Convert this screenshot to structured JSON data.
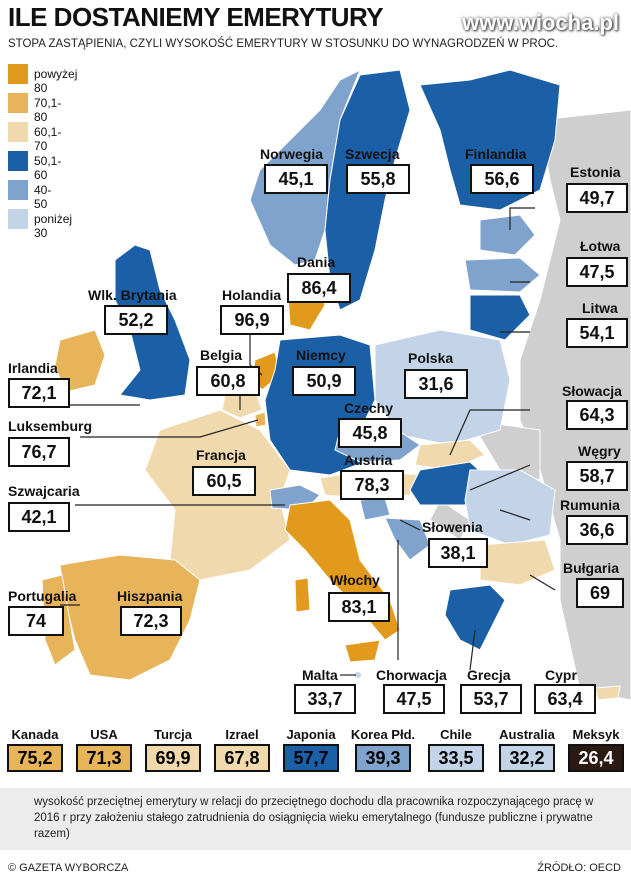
{
  "header": {
    "title": "ILE DOSTANIEMY EMERYTURY",
    "subtitle": "STOPA ZASTĄPIENIA, CZYLI WYSOKOŚĆ EMERYTURY W STOSUNKU DO WYNAGRODZEŃ W PROC.",
    "watermark": "www.wiocha.pl"
  },
  "colors": {
    "powyzej80": "#e29a1c",
    "r70_80": "#e8b45a",
    "r60_70": "#f1d9ae",
    "r50_60": "#1b5fa7",
    "r40_50": "#7fa3cd",
    "ponizej30": "#c3d4e8",
    "nodata": "#cfcfcf",
    "meksyk": "#2a1a12"
  },
  "legend": [
    {
      "label": "powyżej 80",
      "color": "#e29a1c"
    },
    {
      "label": "70,1-80",
      "color": "#e8b45a"
    },
    {
      "label": "60,1-70",
      "color": "#f1d9ae"
    },
    {
      "label": "50,1-60",
      "color": "#1b5fa7"
    },
    {
      "label": "40-50",
      "color": "#7fa3cd"
    },
    {
      "label": "poniżej 30",
      "color": "#c3d4e8"
    }
  ],
  "countries": {
    "norwegia": {
      "name": "Norwegia",
      "value": "45,1"
    },
    "szwecja": {
      "name": "Szwecja",
      "value": "55,8"
    },
    "finlandia": {
      "name": "Finlandia",
      "value": "56,6"
    },
    "estonia": {
      "name": "Estonia",
      "value": "49,7"
    },
    "lotwa": {
      "name": "Łotwa",
      "value": "47,5"
    },
    "litwa": {
      "name": "Litwa",
      "value": "54,1"
    },
    "dania": {
      "name": "Dania",
      "value": "86,4"
    },
    "wielka_brytania": {
      "name": "Wlk. Brytania",
      "value": "52,2"
    },
    "holandia": {
      "name": "Holandia",
      "value": "96,9"
    },
    "irlandia": {
      "name": "Irlandia",
      "value": "72,1"
    },
    "belgia": {
      "name": "Belgia",
      "value": "60,8"
    },
    "niemcy": {
      "name": "Niemcy",
      "value": "50,9"
    },
    "polska": {
      "name": "Polska",
      "value": "31,6"
    },
    "slowacja": {
      "name": "Słowacja",
      "value": "64,3"
    },
    "luksemburg": {
      "name": "Luksemburg",
      "value": "76,7"
    },
    "czechy": {
      "name": "Czechy",
      "value": "45,8"
    },
    "wegry": {
      "name": "Węgry",
      "value": "58,7"
    },
    "francja": {
      "name": "Francja",
      "value": "60,5"
    },
    "austria": {
      "name": "Austria",
      "value": "78,3"
    },
    "szwajcaria": {
      "name": "Szwajcaria",
      "value": "42,1"
    },
    "rumunia": {
      "name": "Rumunia",
      "value": "36,6"
    },
    "slowenia": {
      "name": "Słowenia",
      "value": "38,1"
    },
    "bulgaria": {
      "name": "Bułgaria",
      "value": "69"
    },
    "portugalia": {
      "name": "Portugalia",
      "value": "74"
    },
    "hiszpania": {
      "name": "Hiszpania",
      "value": "72,3"
    },
    "wlochy": {
      "name": "Włochy",
      "value": "83,1"
    },
    "malta": {
      "name": "Malta",
      "value": "33,7"
    },
    "chorwacja": {
      "name": "Chorwacja",
      "value": "47,5"
    },
    "grecja": {
      "name": "Grecja",
      "value": "53,7"
    },
    "cypr": {
      "name": "Cypr",
      "value": "63,4"
    }
  },
  "oecd_other": [
    {
      "name": "Kanada",
      "value": "75,2",
      "color": "#e8b45a"
    },
    {
      "name": "USA",
      "value": "71,3",
      "color": "#e8b45a"
    },
    {
      "name": "Turcja",
      "value": "69,9",
      "color": "#f1d9ae"
    },
    {
      "name": "Izrael",
      "value": "67,8",
      "color": "#f1d9ae"
    },
    {
      "name": "Japonia",
      "value": "57,7",
      "color": "#1b5fa7"
    },
    {
      "name": "Korea Płd.",
      "value": "39,3",
      "color": "#7fa3cd"
    },
    {
      "name": "Chile",
      "value": "33,5",
      "color": "#c3d4e8"
    },
    {
      "name": "Australia",
      "value": "32,2",
      "color": "#c3d4e8"
    },
    {
      "name": "Meksyk",
      "value": "26,4",
      "color": "#2a1a12"
    }
  ],
  "footnote": "wysokość przeciętnej emerytury w relacji do przeciętnego dochodu dla pracownika rozpoczynającego pracę w 2016 r przy założeniu stałego zatrudnienia do osiągnięcia wieku emerytalnego (fundusze publiczne i prywatne razem)",
  "credit": "© GAZETA WYBORCZA",
  "source": "ŹRÓDŁO: OECD"
}
